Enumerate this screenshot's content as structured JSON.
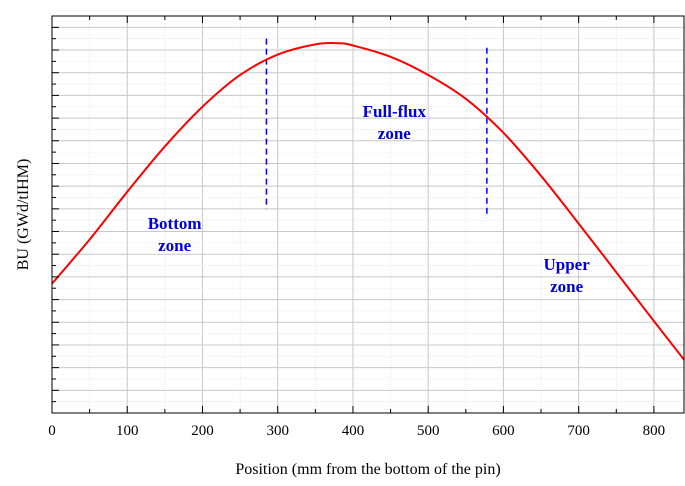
{
  "chart_data": {
    "type": "line",
    "title": "",
    "xlabel": "Position (mm from the bottom of the pin)",
    "ylabel": "BU (GWd/tIHM)",
    "xlim": [
      0,
      840
    ],
    "ylim": [
      0,
      17.5
    ],
    "x_ticks": [
      0,
      100,
      200,
      300,
      400,
      500,
      600,
      700,
      800
    ],
    "x_tick_labels": [
      "0",
      "100",
      "200",
      "300",
      "400",
      "500",
      "600",
      "700",
      "800"
    ],
    "y_ticks": [
      0,
      1,
      2,
      3,
      4,
      5,
      6,
      7,
      8,
      9,
      10,
      11,
      12,
      13,
      14,
      15,
      16,
      17
    ],
    "y_tick_labels_shown": false,
    "grid": true,
    "legend": "none",
    "series": [
      {
        "color": "#ff0000",
        "x": [
          0,
          50,
          100,
          150,
          200,
          250,
          300,
          350,
          380,
          400,
          450,
          500,
          550,
          600,
          650,
          700,
          750,
          800,
          840
        ],
        "y": [
          5.7,
          7.65,
          9.75,
          11.75,
          13.5,
          14.9,
          15.8,
          16.25,
          16.3,
          16.2,
          15.7,
          14.9,
          13.85,
          12.35,
          10.45,
          8.35,
          6.2,
          4.05,
          2.35
        ]
      }
    ],
    "boundaries": [
      {
        "x": 285,
        "y_from": 9.0,
        "y_to": 16.5,
        "color": "#0000ff",
        "style": "dashed"
      },
      {
        "x": 578,
        "y_from": 8.6,
        "y_to": 16.1,
        "color": "#0000ff",
        "style": "dashed"
      }
    ],
    "annotations": [
      {
        "lines": [
          "Bottom",
          "zone"
        ],
        "x": 163,
        "y": 8.1,
        "color": "#0000dd"
      },
      {
        "lines": [
          "Full-flux",
          "zone"
        ],
        "x": 455,
        "y": 13.05,
        "color": "#0000dd"
      },
      {
        "lines": [
          "Upper",
          "zone"
        ],
        "x": 684,
        "y": 6.3,
        "color": "#0000dd"
      }
    ]
  }
}
